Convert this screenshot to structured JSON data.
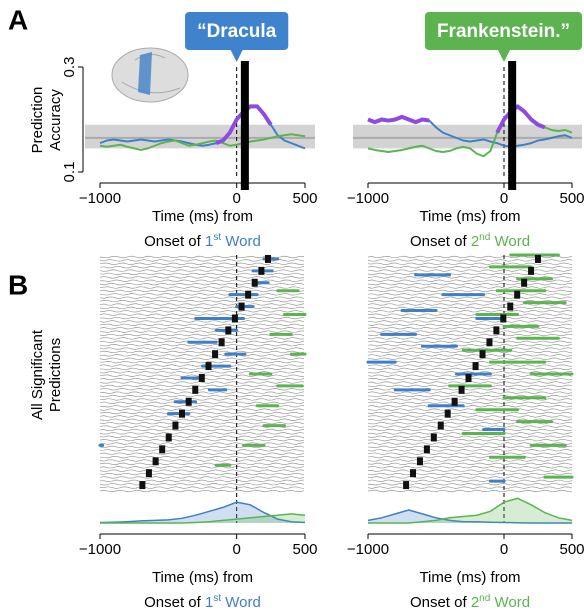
{
  "panel_labels": [
    "A",
    "B"
  ],
  "chart_data": [
    {
      "type": "line",
      "callout": "“Dracula",
      "callout_color": "#3f83cf",
      "ylabel": [
        "Prediction",
        "Accuracy"
      ],
      "xlabel": "Time (ms) from",
      "xlabel_2": [
        "Onset of ",
        "1",
        "st",
        " Word"
      ],
      "xlabel_color": "#3f7fc6",
      "x": [
        -1000,
        -950,
        -900,
        -850,
        -800,
        -750,
        -700,
        -650,
        -600,
        -550,
        -500,
        -450,
        -400,
        -350,
        -300,
        -250,
        -200,
        -150,
        -100,
        -50,
        0,
        50,
        100,
        150,
        200,
        250,
        300,
        350,
        400,
        450,
        500
      ],
      "series": [
        {
          "color": "#3f7fc6",
          "linewidth": 2,
          "values": [
            0.155,
            0.16,
            0.162,
            0.16,
            0.158,
            0.16,
            0.162,
            0.16,
            0.158,
            0.16,
            0.162,
            0.16,
            0.158,
            0.155,
            0.152,
            0.15,
            0.152,
            0.155,
            0.16,
            0.175,
            0.2,
            0.215,
            0.225,
            0.225,
            0.21,
            0.19,
            0.17,
            0.16,
            0.155,
            0.15,
            0.145
          ]
        },
        {
          "color": "#5bb450",
          "linewidth": 2,
          "values": [
            0.15,
            0.148,
            0.15,
            0.152,
            0.148,
            0.145,
            0.142,
            0.145,
            0.15,
            0.155,
            0.158,
            0.16,
            0.155,
            0.15,
            0.152,
            0.155,
            0.158,
            0.16,
            0.155,
            0.15,
            0.152,
            0.155,
            0.158,
            0.16,
            0.162,
            0.165,
            0.168,
            0.17,
            0.172,
            0.17,
            0.168
          ]
        },
        {
          "color": "#8e4be0",
          "linewidth": 4,
          "values": [
            null,
            null,
            null,
            null,
            null,
            null,
            null,
            null,
            null,
            null,
            null,
            null,
            null,
            null,
            null,
            null,
            null,
            0.155,
            0.16,
            0.175,
            0.2,
            0.215,
            0.225,
            0.225,
            0.21,
            0.19,
            null,
            null,
            null,
            null,
            null
          ]
        }
      ],
      "band": [
        0.145,
        0.19
      ],
      "baseline": 0.165,
      "onset": 60,
      "xlim": [
        -1000,
        500
      ],
      "ylim": [
        0.1,
        0.3
      ],
      "xticks": [
        {
          "value": -1000,
          "label": "−1000"
        },
        0,
        500
      ],
      "yticks": [
        0.1,
        0.3
      ]
    },
    {
      "type": "line",
      "callout": "Frankenstein.”",
      "callout_color": "#5cb34f",
      "xlabel": "Time (ms) from",
      "xlabel_2": [
        "Onset of ",
        "2",
        "nd",
        " Word"
      ],
      "xlabel_color": "#5bb450",
      "x": [
        -1000,
        -950,
        -900,
        -850,
        -800,
        -750,
        -700,
        -650,
        -600,
        -550,
        -500,
        -450,
        -400,
        -350,
        -300,
        -250,
        -200,
        -150,
        -100,
        -50,
        0,
        50,
        100,
        150,
        200,
        250,
        300,
        350,
        400,
        450,
        500
      ],
      "series": [
        {
          "color": "#3f7fc6",
          "linewidth": 2,
          "values": [
            0.2,
            0.195,
            0.2,
            0.198,
            0.2,
            0.205,
            0.2,
            0.195,
            0.2,
            0.198,
            0.185,
            0.175,
            0.17,
            0.165,
            0.16,
            0.158,
            0.16,
            0.162,
            0.158,
            0.155,
            0.15,
            0.148,
            0.15,
            0.152,
            0.155,
            0.16,
            0.162,
            0.165,
            0.168,
            0.17,
            0.165
          ]
        },
        {
          "color": "#5bb450",
          "linewidth": 2,
          "values": [
            0.145,
            0.142,
            0.14,
            0.138,
            0.14,
            0.142,
            0.145,
            0.148,
            0.15,
            0.145,
            0.14,
            0.138,
            0.14,
            0.145,
            0.148,
            0.145,
            0.135,
            0.13,
            0.14,
            0.175,
            0.2,
            0.215,
            0.225,
            0.215,
            0.2,
            0.19,
            0.185,
            0.18,
            0.178,
            0.18,
            0.175
          ]
        },
        {
          "color": "#8e4be0",
          "linewidth": 4,
          "values": [
            0.2,
            0.195,
            0.2,
            0.198,
            0.2,
            0.205,
            0.2,
            0.195,
            0.2,
            0.198,
            null,
            null,
            null,
            null,
            null,
            null,
            null,
            null,
            null,
            0.175,
            0.2,
            0.215,
            0.225,
            0.215,
            0.2,
            0.19,
            0.185,
            null,
            null,
            null,
            null
          ]
        }
      ],
      "band": [
        0.145,
        0.19
      ],
      "baseline": 0.165,
      "onset": 60,
      "xlim": [
        -1000,
        500
      ],
      "ylim": [
        0.1,
        0.3
      ],
      "xticks": [
        {
          "value": -1000,
          "label": "−1000"
        },
        0,
        500
      ]
    },
    {
      "type": "raster",
      "ylabel": [
        "All Significant",
        "Predictions"
      ],
      "xlabel": "Time (ms) from",
      "xlabel_2": [
        "Onset of ",
        "1",
        "st",
        " Word"
      ],
      "xlabel_color": "#3f7fc6",
      "xlim": [
        -1000,
        500
      ],
      "ylim": [
        0,
        60
      ],
      "xticks": [
        {
          "value": -1000,
          "label": "−1000"
        },
        0,
        500
      ],
      "segments": [
        {
          "color": "#3f7fc6",
          "spans": [
            [
              200,
              300,
              59
            ],
            [
              120,
              260,
              56
            ],
            [
              150,
              230,
              53
            ],
            [
              -50,
              150,
              50
            ],
            [
              0,
              120,
              47
            ],
            [
              -300,
              -100,
              44
            ],
            [
              -100,
              50,
              44
            ],
            [
              -150,
              0,
              41
            ],
            [
              -350,
              -150,
              38
            ],
            [
              -80,
              60,
              35
            ],
            [
              -250,
              -50,
              32
            ],
            [
              -400,
              -250,
              29
            ],
            [
              -200,
              -80,
              26
            ],
            [
              -450,
              -300,
              23
            ],
            [
              -500,
              -350,
              20
            ],
            [
              -1000,
              -980,
              12
            ]
          ]
        },
        {
          "color": "#5bb450",
          "spans": [
            [
              300,
              450,
              51
            ],
            [
              350,
              500,
              45
            ],
            [
              250,
              400,
              40
            ],
            [
              400,
              500,
              35
            ],
            [
              100,
              250,
              30
            ],
            [
              300,
              480,
              27
            ],
            [
              150,
              300,
              22
            ],
            [
              200,
              350,
              17
            ],
            [
              50,
              200,
              12
            ],
            [
              -150,
              -50,
              7
            ]
          ]
        }
      ],
      "markers": {
        "x": [
          -690,
          -642,
          -593,
          -545,
          -497,
          -448,
          -400,
          -351,
          -303,
          -255,
          -206,
          -158,
          -110,
          -61,
          -13,
          36,
          84,
          132,
          181,
          229
        ],
        "rows": [
          2,
          5,
          8,
          11,
          14,
          17,
          20,
          23,
          26,
          29,
          32,
          35,
          38,
          41,
          44,
          47,
          50,
          53,
          56,
          59
        ]
      },
      "density": {
        "x": [
          -1000,
          -900,
          -800,
          -700,
          -600,
          -500,
          -400,
          -300,
          -200,
          -100,
          0,
          100,
          200,
          300,
          400,
          500
        ],
        "ylim": [
          0,
          1
        ],
        "series": [
          {
            "color": "#3f7fc6",
            "values": [
              0.02,
              0.03,
              0.05,
              0.08,
              0.1,
              0.12,
              0.18,
              0.3,
              0.45,
              0.6,
              0.8,
              0.7,
              0.4,
              0.15,
              0.05,
              0.02
            ]
          },
          {
            "color": "#5bb450",
            "values": [
              0,
              0,
              0,
              0,
              0,
              0,
              0,
              0.02,
              0.05,
              0.1,
              0.15,
              0.2,
              0.25,
              0.3,
              0.35,
              0.3
            ]
          }
        ]
      }
    },
    {
      "type": "raster",
      "xlabel": "Time (ms) from",
      "xlabel_2": [
        "Onset of ",
        "2",
        "nd",
        " Word"
      ],
      "xlabel_color": "#5bb450",
      "xlim": [
        -1000,
        500
      ],
      "ylim": [
        0,
        60
      ],
      "xticks": [
        {
          "value": -1000,
          "label": "−1000"
        },
        0,
        500
      ],
      "segments": [
        {
          "color": "#3f7fc6",
          "spans": [
            [
              -650,
              -400,
              55
            ],
            [
              -450,
              -150,
              50
            ],
            [
              -750,
              -500,
              46
            ],
            [
              -200,
              0,
              44
            ],
            [
              -900,
              -650,
              40
            ],
            [
              -600,
              -350,
              37
            ],
            [
              -1000,
              -800,
              33
            ],
            [
              -350,
              -100,
              30
            ],
            [
              -800,
              -550,
              26
            ],
            [
              -550,
              -300,
              22
            ],
            [
              -150,
              0,
              16
            ],
            [
              -100,
              0,
              3
            ]
          ]
        },
        {
          "color": "#5bb450",
          "spans": [
            [
              50,
              400,
              60
            ],
            [
              -100,
              200,
              57
            ],
            [
              100,
              350,
              54
            ],
            [
              -50,
              300,
              51
            ],
            [
              150,
              450,
              48
            ],
            [
              -200,
              100,
              45
            ],
            [
              0,
              250,
              42
            ],
            [
              100,
              400,
              39
            ],
            [
              -300,
              50,
              36
            ],
            [
              -100,
              300,
              33
            ],
            [
              200,
              500,
              30
            ],
            [
              -400,
              -100,
              27
            ],
            [
              0,
              300,
              24
            ],
            [
              -200,
              100,
              21
            ],
            [
              100,
              350,
              18
            ],
            [
              -300,
              0,
              15
            ],
            [
              200,
              450,
              12
            ],
            [
              -100,
              150,
              9
            ],
            [
              300,
              500,
              4
            ]
          ]
        }
      ],
      "markers": {
        "x": [
          -720,
          -669,
          -618,
          -567,
          -516,
          -465,
          -414,
          -363,
          -312,
          -261,
          -209,
          -158,
          -107,
          -56,
          -5,
          46,
          97,
          148,
          199,
          250
        ],
        "rows": [
          2,
          5,
          8,
          11,
          14,
          17,
          20,
          23,
          26,
          29,
          32,
          35,
          38,
          41,
          44,
          47,
          50,
          53,
          56,
          59
        ]
      },
      "density": {
        "x": [
          -1000,
          -900,
          -800,
          -700,
          -600,
          -500,
          -400,
          -300,
          -200,
          -100,
          0,
          100,
          200,
          300,
          400,
          500
        ],
        "ylim": [
          0,
          1
        ],
        "series": [
          {
            "color": "#3f7fc6",
            "values": [
              0.1,
              0.2,
              0.35,
              0.5,
              0.35,
              0.2,
              0.1,
              0.05,
              0.05,
              0.03,
              0.02,
              0.01,
              0,
              0,
              0,
              0
            ]
          },
          {
            "color": "#5bb450",
            "values": [
              0,
              0,
              0,
              0,
              0.05,
              0.1,
              0.2,
              0.25,
              0.3,
              0.45,
              0.8,
              0.95,
              0.7,
              0.4,
              0.2,
              0.1
            ]
          }
        ]
      }
    }
  ]
}
